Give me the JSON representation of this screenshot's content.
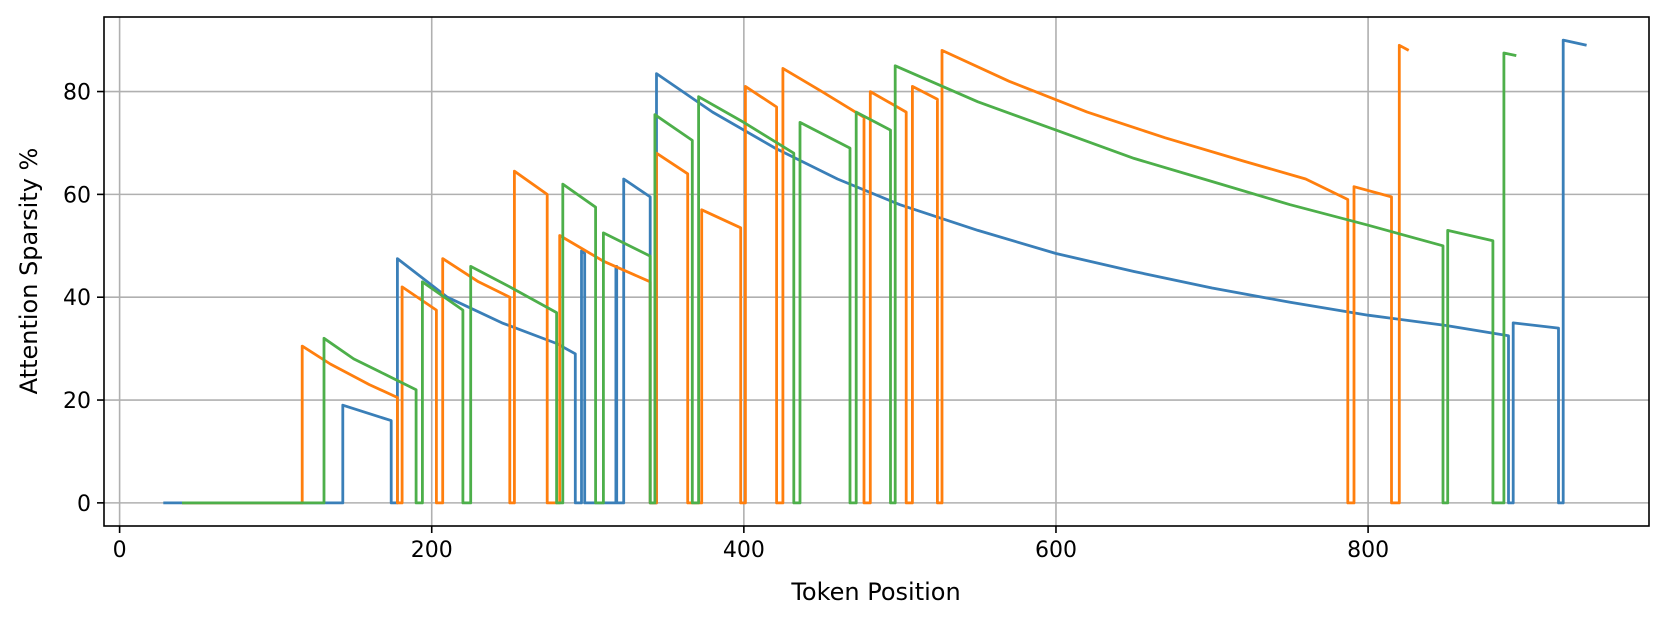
{
  "chart_data": {
    "type": "line",
    "title": "",
    "xlabel": "Token Position",
    "ylabel": "Attention Sparsity %",
    "xlim": [
      -10,
      980
    ],
    "ylim": [
      -4.5,
      94.5
    ],
    "xticks": [
      0,
      200,
      400,
      600,
      800
    ],
    "yticks": [
      0,
      20,
      40,
      60,
      80
    ],
    "grid": true,
    "legend": "none",
    "series": [
      {
        "name": "blue",
        "color": "#3a7fb8",
        "points": [
          [
            28,
            0
          ],
          [
            143,
            0
          ],
          [
            143,
            19
          ],
          [
            174,
            16
          ],
          [
            174,
            0
          ],
          [
            178,
            0
          ],
          [
            178,
            47.5
          ],
          [
            210,
            40
          ],
          [
            245,
            35
          ],
          [
            280,
            31
          ],
          [
            292,
            29
          ],
          [
            292,
            0
          ],
          [
            296,
            0
          ],
          [
            296,
            49
          ],
          [
            298,
            48.5
          ],
          [
            298,
            0
          ],
          [
            318,
            0
          ],
          [
            318,
            46
          ],
          [
            318.5,
            46
          ],
          [
            318.5,
            0
          ],
          [
            323,
            0
          ],
          [
            323,
            63
          ],
          [
            340,
            59.5
          ],
          [
            340,
            0
          ],
          [
            344,
            0
          ],
          [
            344,
            83.5
          ],
          [
            380,
            76
          ],
          [
            420,
            69
          ],
          [
            460,
            63
          ],
          [
            500,
            58
          ],
          [
            550,
            53
          ],
          [
            600,
            48.5
          ],
          [
            650,
            45
          ],
          [
            700,
            41.8
          ],
          [
            750,
            39
          ],
          [
            800,
            36.5
          ],
          [
            850,
            34.5
          ],
          [
            890,
            32.5
          ],
          [
            890,
            0
          ],
          [
            893,
            0
          ],
          [
            893,
            35
          ],
          [
            922,
            34
          ],
          [
            922,
            0
          ],
          [
            925,
            0
          ],
          [
            925,
            90
          ],
          [
            940,
            89
          ]
        ]
      },
      {
        "name": "orange",
        "color": "#ff7f0e",
        "points": [
          [
            40,
            0
          ],
          [
            117,
            0
          ],
          [
            117,
            30.5
          ],
          [
            135,
            27
          ],
          [
            160,
            23
          ],
          [
            178,
            20.5
          ],
          [
            178,
            0
          ],
          [
            181,
            0
          ],
          [
            181,
            42
          ],
          [
            203,
            37.5
          ],
          [
            203,
            0
          ],
          [
            207,
            0
          ],
          [
            207,
            47.5
          ],
          [
            230,
            43
          ],
          [
            250,
            40
          ],
          [
            250,
            0
          ],
          [
            253,
            0
          ],
          [
            253,
            64.5
          ],
          [
            274,
            60
          ],
          [
            274,
            0
          ],
          [
            282,
            0
          ],
          [
            282,
            52
          ],
          [
            310,
            47
          ],
          [
            340,
            43
          ],
          [
            340,
            0
          ],
          [
            344,
            0
          ],
          [
            344,
            68
          ],
          [
            364,
            64
          ],
          [
            364,
            0
          ],
          [
            373,
            0
          ],
          [
            373,
            57
          ],
          [
            398,
            53.5
          ],
          [
            398,
            0
          ],
          [
            401,
            0
          ],
          [
            401,
            81
          ],
          [
            421,
            77
          ],
          [
            421,
            0
          ],
          [
            425,
            0
          ],
          [
            425,
            84.5
          ],
          [
            450,
            80
          ],
          [
            477,
            75
          ],
          [
            477,
            0
          ],
          [
            481,
            0
          ],
          [
            481,
            80
          ],
          [
            504,
            76
          ],
          [
            504,
            0
          ],
          [
            508,
            0
          ],
          [
            508,
            81
          ],
          [
            524,
            78.5
          ],
          [
            524,
            0
          ],
          [
            527,
            0
          ],
          [
            527,
            88
          ],
          [
            570,
            82
          ],
          [
            620,
            76
          ],
          [
            670,
            71
          ],
          [
            720,
            66.5
          ],
          [
            760,
            63
          ],
          [
            787,
            59
          ],
          [
            787,
            0
          ],
          [
            791,
            0
          ],
          [
            791,
            61.5
          ],
          [
            815,
            59.5
          ],
          [
            815,
            0
          ],
          [
            820,
            0
          ],
          [
            820,
            89
          ],
          [
            826,
            88
          ]
        ]
      },
      {
        "name": "green",
        "color": "#4daf4a",
        "points": [
          [
            40,
            0
          ],
          [
            131,
            0
          ],
          [
            131,
            32
          ],
          [
            150,
            28
          ],
          [
            170,
            25
          ],
          [
            190,
            22
          ],
          [
            190,
            0
          ],
          [
            194,
            0
          ],
          [
            194,
            43
          ],
          [
            220,
            37.5
          ],
          [
            220,
            0
          ],
          [
            225,
            0
          ],
          [
            225,
            46
          ],
          [
            250,
            42
          ],
          [
            280,
            37
          ],
          [
            280,
            0
          ],
          [
            284,
            0
          ],
          [
            284,
            62
          ],
          [
            305,
            57.5
          ],
          [
            305,
            0
          ],
          [
            310,
            0
          ],
          [
            310,
            52.5
          ],
          [
            340,
            48
          ],
          [
            340,
            0
          ],
          [
            343,
            0
          ],
          [
            343,
            75.5
          ],
          [
            367,
            70.5
          ],
          [
            367,
            0
          ],
          [
            371,
            0
          ],
          [
            371,
            79
          ],
          [
            400,
            74
          ],
          [
            432,
            68
          ],
          [
            432,
            0
          ],
          [
            436,
            0
          ],
          [
            436,
            74
          ],
          [
            468,
            69
          ],
          [
            468,
            0
          ],
          [
            472,
            0
          ],
          [
            472,
            76
          ],
          [
            494,
            72.5
          ],
          [
            494,
            0
          ],
          [
            497,
            0
          ],
          [
            497,
            85
          ],
          [
            550,
            78
          ],
          [
            600,
            72.5
          ],
          [
            650,
            67
          ],
          [
            700,
            62.5
          ],
          [
            750,
            58
          ],
          [
            800,
            54
          ],
          [
            848,
            50
          ],
          [
            848,
            0
          ],
          [
            851,
            0
          ],
          [
            851,
            53
          ],
          [
            880,
            51
          ],
          [
            880,
            0
          ],
          [
            887,
            0
          ],
          [
            887,
            87.5
          ],
          [
            895,
            87
          ]
        ]
      }
    ]
  }
}
